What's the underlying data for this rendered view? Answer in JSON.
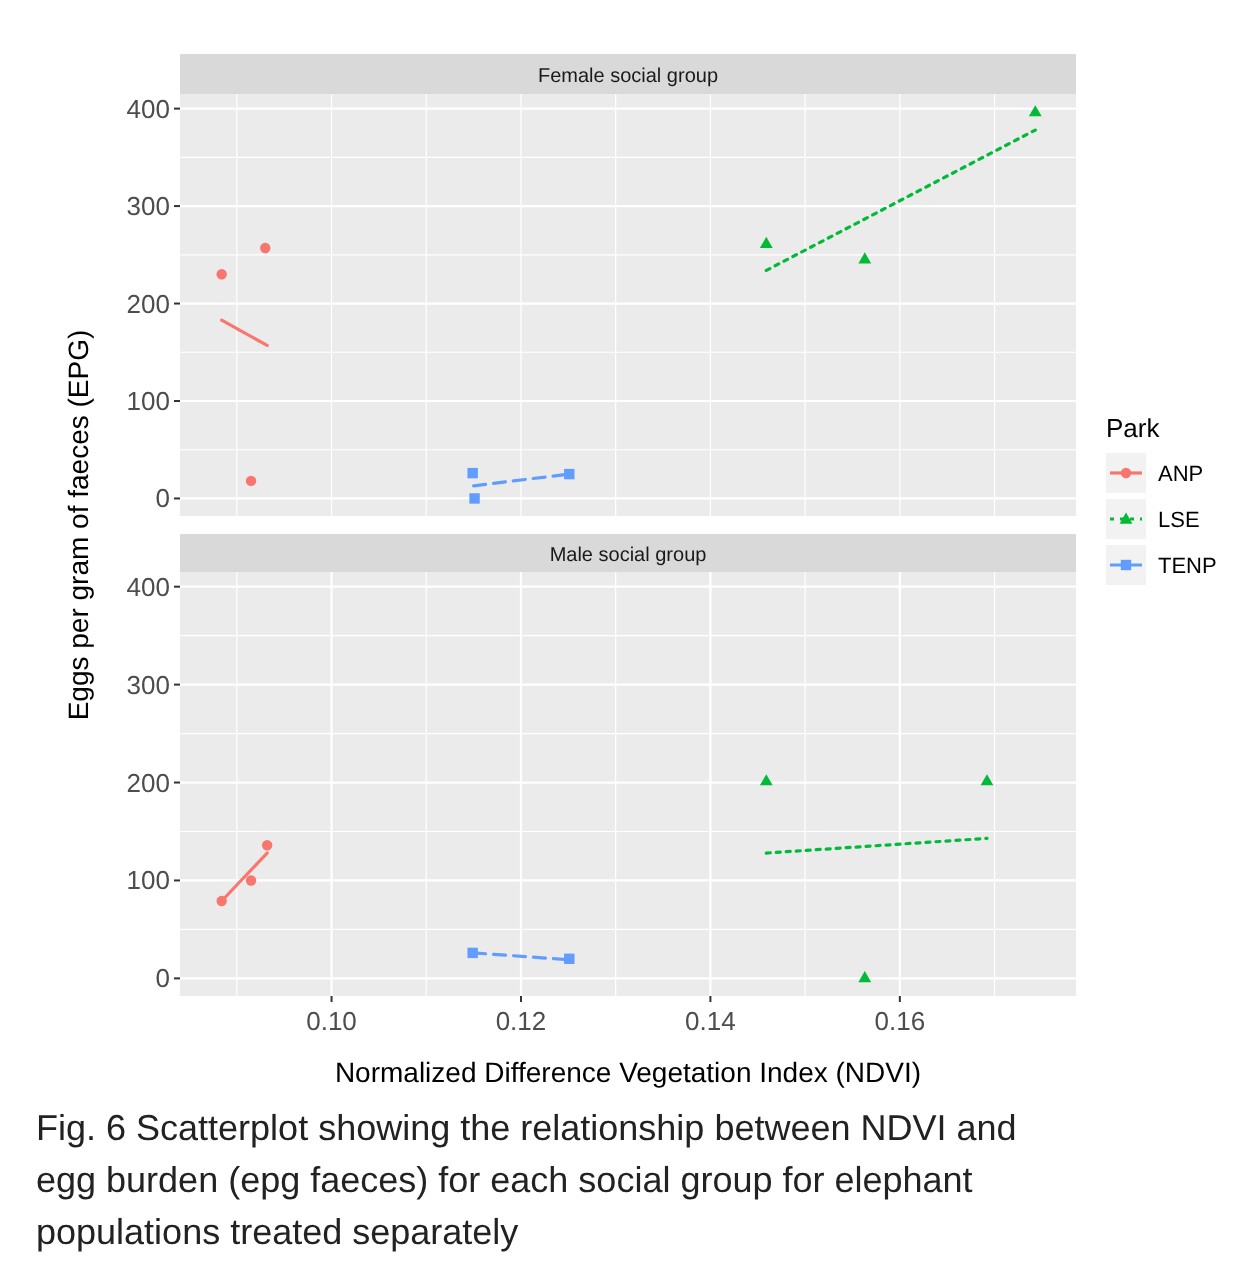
{
  "chart_data": [
    {
      "type": "scatter",
      "title": "Female social group",
      "ylabel": "Eggs per gram of faeces (EPG)",
      "grid": true,
      "tick_labels": "y",
      "xlim": [
        0.084,
        0.1786
      ],
      "xticks": [
        {
          "value": 0.09,
          "label": null
        },
        {
          "value": 0.1,
          "label": null
        },
        {
          "value": 0.11,
          "label": null
        },
        {
          "value": 0.12,
          "label": null
        },
        {
          "value": 0.13,
          "label": null
        },
        {
          "value": 0.14,
          "label": null
        },
        {
          "value": 0.15,
          "label": null
        },
        {
          "value": 0.16,
          "label": null
        },
        {
          "value": 0.17,
          "label": null
        }
      ],
      "ylim": [
        -18,
        415
      ],
      "yticks": [
        0,
        {
          "value": 50,
          "label": null
        },
        100,
        {
          "value": 150,
          "label": null
        },
        200,
        {
          "value": 250,
          "label": null
        },
        300,
        {
          "value": 350,
          "label": null
        },
        400
      ],
      "series": [
        {
          "marker": "circle",
          "color": "#f8766d",
          "x": [
            0.0884,
            0.093,
            0.0915
          ],
          "values": [
            230,
            257,
            18
          ]
        },
        {
          "marker": "triangle",
          "color": "#00ba38",
          "x": [
            0.1459,
            0.1563,
            0.1743
          ],
          "values": [
            262,
            246,
            397
          ]
        },
        {
          "marker": "square",
          "color": "#619cff",
          "x": [
            0.1149,
            0.1151,
            0.1251
          ],
          "values": [
            26,
            0,
            25
          ]
        },
        {
          "type": "line",
          "marker": "none",
          "line_style": "solid",
          "color": "#f8766d",
          "x": [
            0.0884,
            0.0932
          ],
          "values": [
            183,
            157
          ]
        },
        {
          "type": "line",
          "marker": "none",
          "line_style": "dotted",
          "color": "#00ba38",
          "x": [
            0.1459,
            0.1743
          ],
          "values": [
            234,
            378
          ]
        },
        {
          "type": "line",
          "marker": "none",
          "line_style": "dashed",
          "color": "#619cff",
          "x": [
            0.115,
            0.1251
          ],
          "values": [
            13,
            25
          ]
        }
      ]
    },
    {
      "type": "scatter",
      "title": "Male social group",
      "xlabel": "Normalized Difference Vegetation Index (NDVI)",
      "legend_title": "Park",
      "legend": "right",
      "grid": true,
      "annotations": [
        "Fig. 6  Scatterplot showing the relationship between NDVI and egg burden (epg faeces) for each social group for elephant populations treated separately"
      ],
      "xlim": [
        0.084,
        0.1786
      ],
      "xticks": [
        {
          "value": 0.09,
          "label": null
        },
        {
          "value": 0.1,
          "label": "0.10"
        },
        {
          "value": 0.11,
          "label": null
        },
        {
          "value": 0.12,
          "label": "0.12"
        },
        {
          "value": 0.13,
          "label": null
        },
        {
          "value": 0.14,
          "label": "0.14"
        },
        {
          "value": 0.15,
          "label": null
        },
        {
          "value": 0.16,
          "label": "0.16"
        },
        {
          "value": 0.17,
          "label": null
        }
      ],
      "ylim": [
        -18,
        415
      ],
      "yticks": [
        0,
        {
          "value": 50,
          "label": null
        },
        100,
        {
          "value": 150,
          "label": null
        },
        200,
        {
          "value": 250,
          "label": null
        },
        300,
        {
          "value": 350,
          "label": null
        },
        400
      ],
      "series": [
        {
          "name": "ANP",
          "marker": "circle",
          "color": "#f8766d",
          "x": [
            0.0884,
            0.0915,
            0.0932
          ],
          "values": [
            79,
            100,
            136
          ]
        },
        {
          "name": "LSE",
          "marker": "triangle",
          "color": "#00ba38",
          "x": [
            0.1459,
            0.1563,
            0.1692
          ],
          "values": [
            202,
            1,
            202
          ]
        },
        {
          "name": "TENP",
          "marker": "square",
          "color": "#619cff",
          "x": [
            0.1149,
            0.1251
          ],
          "values": [
            26,
            20
          ]
        },
        {
          "type": "line",
          "marker": "none",
          "line_style": "solid",
          "color": "#f8766d",
          "x": [
            0.0884,
            0.0932
          ],
          "values": [
            79,
            128
          ]
        },
        {
          "type": "line",
          "marker": "none",
          "line_style": "dotted",
          "color": "#00ba38",
          "x": [
            0.1459,
            0.1692
          ],
          "values": [
            128,
            143
          ]
        },
        {
          "type": "line",
          "marker": "none",
          "line_style": "dashed",
          "color": "#619cff",
          "x": [
            0.115,
            0.1251
          ],
          "values": [
            26,
            19
          ]
        }
      ]
    }
  ]
}
